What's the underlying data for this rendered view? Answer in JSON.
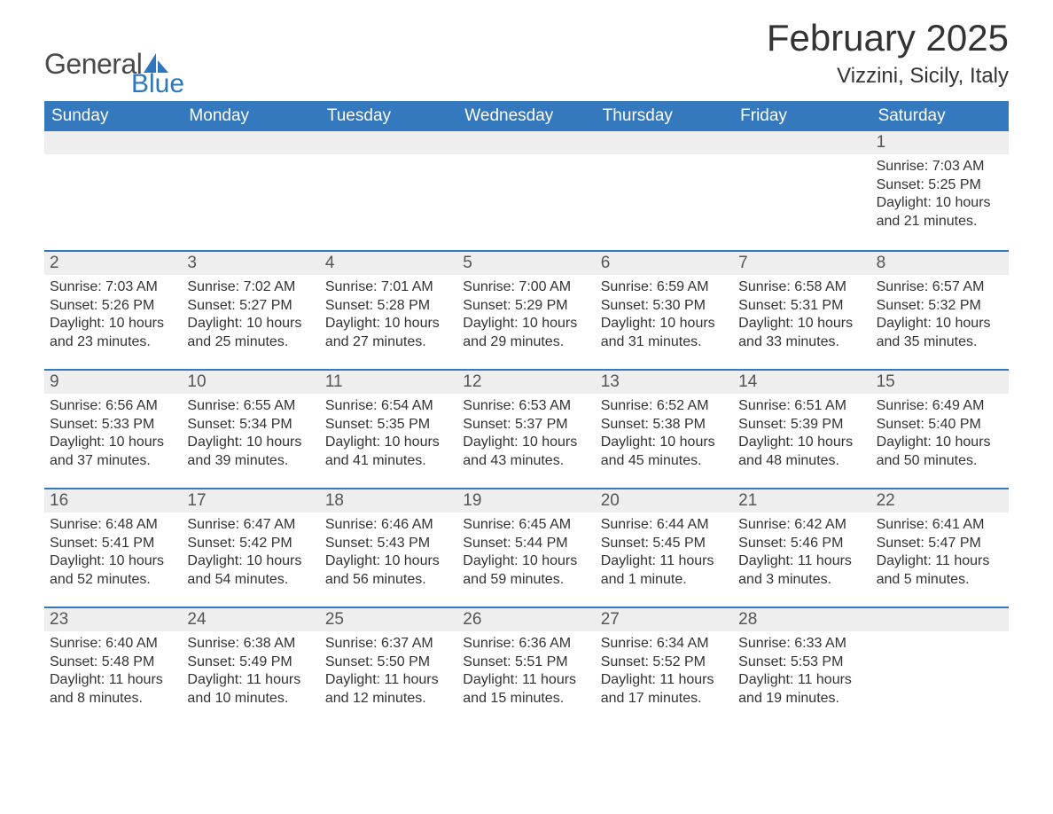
{
  "brand": {
    "word1": "General",
    "word2": "Blue",
    "color_text": "#4a4a4a",
    "color_accent": "#2f77bc"
  },
  "title": "February 2025",
  "location": "Vizzini, Sicily, Italy",
  "styling": {
    "header_bg": "#3478bd",
    "header_text_color": "#ffffff",
    "daynum_bg": "#eeeeee",
    "week_divider_color": "#3478bd",
    "body_text_color": "#333333",
    "page_bg": "#ffffff",
    "title_fontsize": 42,
    "location_fontsize": 24,
    "header_fontsize": 19,
    "body_fontsize": 16,
    "columns": 7
  },
  "weekdays": [
    "Sunday",
    "Monday",
    "Tuesday",
    "Wednesday",
    "Thursday",
    "Friday",
    "Saturday"
  ],
  "weeks": [
    [
      null,
      null,
      null,
      null,
      null,
      null,
      {
        "n": "1",
        "sunrise": "Sunrise: 7:03 AM",
        "sunset": "Sunset: 5:25 PM",
        "daylight": "Daylight: 10 hours and 21 minutes."
      }
    ],
    [
      {
        "n": "2",
        "sunrise": "Sunrise: 7:03 AM",
        "sunset": "Sunset: 5:26 PM",
        "daylight": "Daylight: 10 hours and 23 minutes."
      },
      {
        "n": "3",
        "sunrise": "Sunrise: 7:02 AM",
        "sunset": "Sunset: 5:27 PM",
        "daylight": "Daylight: 10 hours and 25 minutes."
      },
      {
        "n": "4",
        "sunrise": "Sunrise: 7:01 AM",
        "sunset": "Sunset: 5:28 PM",
        "daylight": "Daylight: 10 hours and 27 minutes."
      },
      {
        "n": "5",
        "sunrise": "Sunrise: 7:00 AM",
        "sunset": "Sunset: 5:29 PM",
        "daylight": "Daylight: 10 hours and 29 minutes."
      },
      {
        "n": "6",
        "sunrise": "Sunrise: 6:59 AM",
        "sunset": "Sunset: 5:30 PM",
        "daylight": "Daylight: 10 hours and 31 minutes."
      },
      {
        "n": "7",
        "sunrise": "Sunrise: 6:58 AM",
        "sunset": "Sunset: 5:31 PM",
        "daylight": "Daylight: 10 hours and 33 minutes."
      },
      {
        "n": "8",
        "sunrise": "Sunrise: 6:57 AM",
        "sunset": "Sunset: 5:32 PM",
        "daylight": "Daylight: 10 hours and 35 minutes."
      }
    ],
    [
      {
        "n": "9",
        "sunrise": "Sunrise: 6:56 AM",
        "sunset": "Sunset: 5:33 PM",
        "daylight": "Daylight: 10 hours and 37 minutes."
      },
      {
        "n": "10",
        "sunrise": "Sunrise: 6:55 AM",
        "sunset": "Sunset: 5:34 PM",
        "daylight": "Daylight: 10 hours and 39 minutes."
      },
      {
        "n": "11",
        "sunrise": "Sunrise: 6:54 AM",
        "sunset": "Sunset: 5:35 PM",
        "daylight": "Daylight: 10 hours and 41 minutes."
      },
      {
        "n": "12",
        "sunrise": "Sunrise: 6:53 AM",
        "sunset": "Sunset: 5:37 PM",
        "daylight": "Daylight: 10 hours and 43 minutes."
      },
      {
        "n": "13",
        "sunrise": "Sunrise: 6:52 AM",
        "sunset": "Sunset: 5:38 PM",
        "daylight": "Daylight: 10 hours and 45 minutes."
      },
      {
        "n": "14",
        "sunrise": "Sunrise: 6:51 AM",
        "sunset": "Sunset: 5:39 PM",
        "daylight": "Daylight: 10 hours and 48 minutes."
      },
      {
        "n": "15",
        "sunrise": "Sunrise: 6:49 AM",
        "sunset": "Sunset: 5:40 PM",
        "daylight": "Daylight: 10 hours and 50 minutes."
      }
    ],
    [
      {
        "n": "16",
        "sunrise": "Sunrise: 6:48 AM",
        "sunset": "Sunset: 5:41 PM",
        "daylight": "Daylight: 10 hours and 52 minutes."
      },
      {
        "n": "17",
        "sunrise": "Sunrise: 6:47 AM",
        "sunset": "Sunset: 5:42 PM",
        "daylight": "Daylight: 10 hours and 54 minutes."
      },
      {
        "n": "18",
        "sunrise": "Sunrise: 6:46 AM",
        "sunset": "Sunset: 5:43 PM",
        "daylight": "Daylight: 10 hours and 56 minutes."
      },
      {
        "n": "19",
        "sunrise": "Sunrise: 6:45 AM",
        "sunset": "Sunset: 5:44 PM",
        "daylight": "Daylight: 10 hours and 59 minutes."
      },
      {
        "n": "20",
        "sunrise": "Sunrise: 6:44 AM",
        "sunset": "Sunset: 5:45 PM",
        "daylight": "Daylight: 11 hours and 1 minute."
      },
      {
        "n": "21",
        "sunrise": "Sunrise: 6:42 AM",
        "sunset": "Sunset: 5:46 PM",
        "daylight": "Daylight: 11 hours and 3 minutes."
      },
      {
        "n": "22",
        "sunrise": "Sunrise: 6:41 AM",
        "sunset": "Sunset: 5:47 PM",
        "daylight": "Daylight: 11 hours and 5 minutes."
      }
    ],
    [
      {
        "n": "23",
        "sunrise": "Sunrise: 6:40 AM",
        "sunset": "Sunset: 5:48 PM",
        "daylight": "Daylight: 11 hours and 8 minutes."
      },
      {
        "n": "24",
        "sunrise": "Sunrise: 6:38 AM",
        "sunset": "Sunset: 5:49 PM",
        "daylight": "Daylight: 11 hours and 10 minutes."
      },
      {
        "n": "25",
        "sunrise": "Sunrise: 6:37 AM",
        "sunset": "Sunset: 5:50 PM",
        "daylight": "Daylight: 11 hours and 12 minutes."
      },
      {
        "n": "26",
        "sunrise": "Sunrise: 6:36 AM",
        "sunset": "Sunset: 5:51 PM",
        "daylight": "Daylight: 11 hours and 15 minutes."
      },
      {
        "n": "27",
        "sunrise": "Sunrise: 6:34 AM",
        "sunset": "Sunset: 5:52 PM",
        "daylight": "Daylight: 11 hours and 17 minutes."
      },
      {
        "n": "28",
        "sunrise": "Sunrise: 6:33 AM",
        "sunset": "Sunset: 5:53 PM",
        "daylight": "Daylight: 11 hours and 19 minutes."
      },
      null
    ]
  ]
}
